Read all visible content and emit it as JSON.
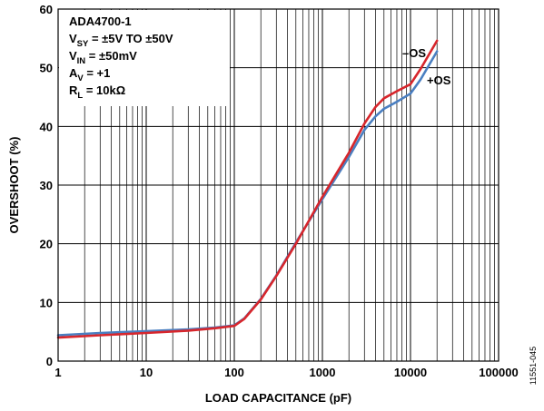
{
  "chart_data": {
    "type": "line",
    "xlabel": "LOAD CAPACITANCE (pF)",
    "ylabel": "OVERSHOOT (%)",
    "xscale": "log",
    "xlim": [
      1,
      100000
    ],
    "ylim": [
      0,
      60
    ],
    "x_ticks": [
      1,
      10,
      100,
      1000,
      10000,
      100000
    ],
    "x_tick_labels": [
      "1",
      "10",
      "100",
      "1000",
      "10000",
      "100000"
    ],
    "y_ticks": [
      0,
      10,
      20,
      30,
      40,
      50,
      60
    ],
    "y_tick_labels": [
      "0",
      "10",
      "20",
      "30",
      "40",
      "50",
      "60"
    ],
    "grid": true,
    "conditions": [
      {
        "main": "ADA4700-1"
      },
      {
        "main": "V",
        "sub": "SY",
        "rest": " = ±5V TO ±50V"
      },
      {
        "main": "V",
        "sub": "IN",
        "rest": " = ±50mV"
      },
      {
        "main": "A",
        "sub": "V",
        "rest": " = +1"
      },
      {
        "main": "R",
        "sub": "L",
        "rest": " = 10kΩ"
      }
    ],
    "figure_number": "11551-045",
    "series": [
      {
        "name": "–OS",
        "color": "#d7262c",
        "x": [
          1,
          3,
          10,
          30,
          60,
          100,
          130,
          200,
          300,
          500,
          1000,
          2000,
          3000,
          4000,
          5000,
          7000,
          10000,
          13000,
          20000
        ],
        "y": [
          4.0,
          4.4,
          4.8,
          5.2,
          5.6,
          6.0,
          7.2,
          10.5,
          14.5,
          20.0,
          28.0,
          35.5,
          40.5,
          43.3,
          44.8,
          46.0,
          47.2,
          49.8,
          54.6
        ]
      },
      {
        "name": "+OS",
        "color": "#4a7fc1",
        "x": [
          1,
          3,
          10,
          30,
          60,
          100,
          130,
          200,
          300,
          500,
          1000,
          2000,
          3000,
          4000,
          5000,
          7000,
          10000,
          13000,
          20000
        ],
        "y": [
          4.4,
          4.8,
          5.1,
          5.4,
          5.7,
          6.1,
          7.3,
          10.6,
          14.6,
          20.2,
          27.6,
          34.8,
          39.4,
          41.7,
          43.0,
          44.2,
          45.6,
          48.0,
          52.8
        ]
      }
    ]
  }
}
